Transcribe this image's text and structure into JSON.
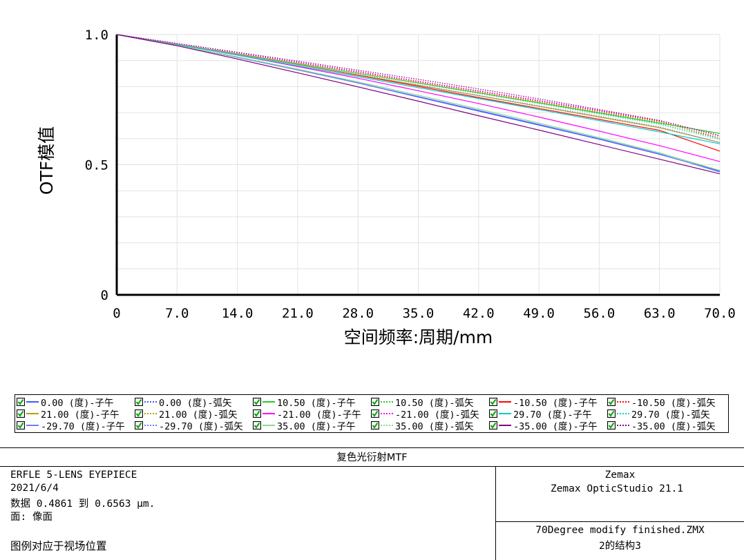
{
  "chart_data": {
    "type": "line",
    "xlabel": "空间频率:周期/mm",
    "ylabel": "OTF模值",
    "xlim": [
      0,
      70
    ],
    "ylim": [
      0,
      1
    ],
    "x_ticks": [
      "0",
      "7.0",
      "14.0",
      "21.0",
      "28.0",
      "35.0",
      "42.0",
      "49.0",
      "56.0",
      "63.0",
      "70.0"
    ],
    "y_ticks": [
      "0",
      "0.5",
      "1.0"
    ],
    "grid": true,
    "legend_position": "bottom",
    "x": [
      0,
      7,
      14,
      21,
      28,
      35,
      42,
      49,
      56,
      63,
      70
    ],
    "series": [
      {
        "name": "0.00 (度)-子午",
        "color": "#3b5bff",
        "style": "solid",
        "values": [
          1.0,
          0.958,
          0.914,
          0.866,
          0.814,
          0.76,
          0.706,
          0.652,
          0.598,
          0.54,
          0.475
        ]
      },
      {
        "name": "0.00 (度)-弧矢",
        "color": "#3b5bff",
        "style": "dotted",
        "values": [
          1.0,
          0.958,
          0.914,
          0.866,
          0.814,
          0.76,
          0.706,
          0.652,
          0.598,
          0.54,
          0.475
        ]
      },
      {
        "name": "10.50 (度)-子午",
        "color": "#22cc22",
        "style": "solid",
        "values": [
          1.0,
          0.962,
          0.925,
          0.888,
          0.851,
          0.814,
          0.776,
          0.738,
          0.699,
          0.66,
          0.62
        ]
      },
      {
        "name": "10.50 (度)-弧矢",
        "color": "#22cc22",
        "style": "dotted",
        "values": [
          1.0,
          0.962,
          0.925,
          0.888,
          0.851,
          0.814,
          0.776,
          0.738,
          0.699,
          0.66,
          0.62
        ]
      },
      {
        "name": "-10.50 (度)-子午",
        "color": "#ff0000",
        "style": "solid",
        "values": [
          1.0,
          0.963,
          0.925,
          0.885,
          0.843,
          0.801,
          0.758,
          0.716,
          0.674,
          0.632,
          0.552
        ]
      },
      {
        "name": "-10.50 (度)-弧矢",
        "color": "#ff0000",
        "style": "dotted",
        "values": [
          1.0,
          0.964,
          0.928,
          0.892,
          0.856,
          0.819,
          0.782,
          0.744,
          0.706,
          0.667,
          0.6
        ]
      },
      {
        "name": "21.00 (度)-子午",
        "color": "#b5a000",
        "style": "solid",
        "values": [
          1.0,
          0.962,
          0.924,
          0.885,
          0.845,
          0.805,
          0.765,
          0.724,
          0.683,
          0.642,
          0.585
        ]
      },
      {
        "name": "21.00 (度)-弧矢",
        "color": "#b5a000",
        "style": "dotted",
        "values": [
          1.0,
          0.963,
          0.926,
          0.889,
          0.852,
          0.815,
          0.778,
          0.74,
          0.702,
          0.664,
          0.605
        ]
      },
      {
        "name": "-21.00 (度)-子午",
        "color": "#ff00ff",
        "style": "solid",
        "values": [
          1.0,
          0.962,
          0.921,
          0.877,
          0.832,
          0.784,
          0.735,
          0.683,
          0.629,
          0.573,
          0.512
        ]
      },
      {
        "name": "-21.00 (度)-弧矢",
        "color": "#ff00ff",
        "style": "dotted",
        "values": [
          1.0,
          0.965,
          0.93,
          0.894,
          0.858,
          0.821,
          0.784,
          0.747,
          0.709,
          0.67,
          0.61
        ]
      },
      {
        "name": "29.70 (度)-子午",
        "color": "#00cccc",
        "style": "solid",
        "values": [
          1.0,
          0.961,
          0.921,
          0.88,
          0.838,
          0.796,
          0.754,
          0.712,
          0.669,
          0.626,
          0.58
        ]
      },
      {
        "name": "29.70 (度)-弧矢",
        "color": "#00cccc",
        "style": "dotted",
        "values": [
          1.0,
          0.963,
          0.926,
          0.888,
          0.85,
          0.812,
          0.774,
          0.735,
          0.696,
          0.657,
          0.6
        ]
      },
      {
        "name": "-29.70 (度)-子午",
        "color": "#6a7dff",
        "style": "solid",
        "values": [
          1.0,
          0.958,
          0.912,
          0.864,
          0.814,
          0.762,
          0.709,
          0.655,
          0.6,
          0.542,
          0.472
        ]
      },
      {
        "name": "-29.70 (度)-弧矢",
        "color": "#6a7dff",
        "style": "dotted",
        "values": [
          1.0,
          0.962,
          0.924,
          0.885,
          0.846,
          0.806,
          0.766,
          0.726,
          0.686,
          0.645,
          0.585
        ]
      },
      {
        "name": "35.00 (度)-子午",
        "color": "#88dd88",
        "style": "solid",
        "values": [
          1.0,
          0.958,
          0.914,
          0.867,
          0.818,
          0.767,
          0.714,
          0.66,
          0.604,
          0.546,
          0.478
        ]
      },
      {
        "name": "35.00 (度)-弧矢",
        "color": "#88dd88",
        "style": "dotted",
        "values": [
          1.0,
          0.963,
          0.926,
          0.888,
          0.85,
          0.812,
          0.773,
          0.734,
          0.694,
          0.654,
          0.595
        ]
      },
      {
        "name": "-35.00 (度)-子午",
        "color": "#800080",
        "style": "solid",
        "values": [
          1.0,
          0.957,
          0.906,
          0.853,
          0.799,
          0.744,
          0.688,
          0.633,
          0.577,
          0.521,
          0.465
        ]
      },
      {
        "name": "-35.00 (度)-弧矢",
        "color": "#800080",
        "style": "dotted",
        "values": [
          1.0,
          0.966,
          0.932,
          0.898,
          0.863,
          0.828,
          0.791,
          0.753,
          0.712,
          0.67,
          0.612
        ]
      }
    ]
  },
  "footer": {
    "title": "复色光衍射MTF",
    "lens_name": "ERFLE 5-LENS EYEPIECE",
    "date": "2021/6/4",
    "data_line": "数据 0.4861 到 0.6563 μm.",
    "surface_line": "面: 像面",
    "legend_note": "图例对应于视场位置",
    "company": "Zemax",
    "software": "Zemax OpticStudio 21.1",
    "file_name": "70Degree modify finished.ZMX",
    "config": "2的结构3"
  }
}
